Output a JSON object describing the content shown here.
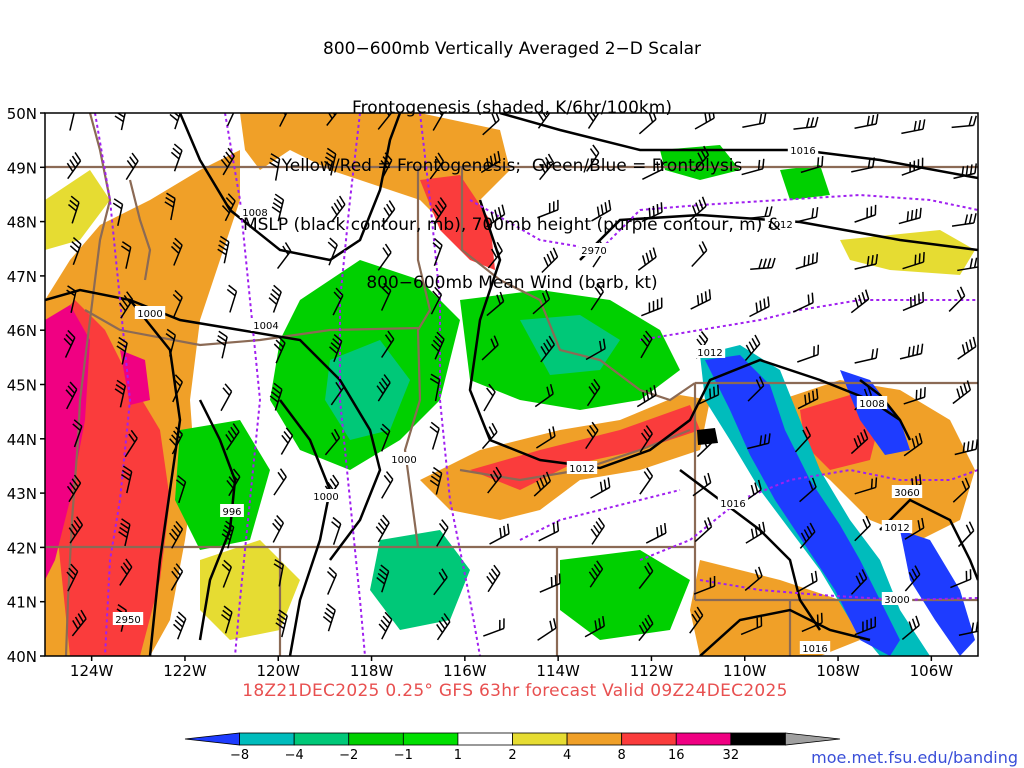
{
  "title": {
    "lines": [
      "800−600mb Vertically Averaged 2−D Scalar",
      "Frontogenesis (shaded, K/6hr/100km)",
      "Yellow/Red = Frontogenesis;  Green/Blue = Frontolysis",
      "MSLP (black contour, mb), 700mb height (purple contour, m) &",
      "800−600mb Mean Wind (barb, kt)"
    ]
  },
  "map": {
    "lon_range": [
      -125,
      -105
    ],
    "lat_range": [
      40,
      50
    ],
    "lon_ticks": [
      "124W",
      "122W",
      "120W",
      "118W",
      "116W",
      "114W",
      "112W",
      "110W",
      "108W",
      "106W"
    ],
    "lat_ticks": [
      "40N",
      "41N",
      "42N",
      "43N",
      "44N",
      "45N",
      "46N",
      "47N",
      "48N",
      "49N",
      "50N"
    ],
    "mslp_labels": [
      "1016",
      "1008",
      "1012",
      "1000",
      "1004",
      "1012",
      "1008",
      "1012",
      "1000",
      "996",
      "1000",
      "1016",
      "1016",
      "1012"
    ],
    "height_labels": [
      "2970",
      "3060",
      "2950",
      "3000"
    ],
    "colors": {
      "mslp": "#000000",
      "height": "#a020f0",
      "borders": "#8b6a55",
      "barbs": "#000000"
    }
  },
  "valid_time": "18Z21DEC2025 0.25° GFS 63hr forecast Valid 09Z24DEC2025",
  "colorbar": {
    "labels": [
      "−8",
      "−4",
      "−2",
      "−1",
      "1",
      "2",
      "4",
      "8",
      "16",
      "32"
    ],
    "colors": [
      "#1e3cff",
      "#00bcbc",
      "#00c878",
      "#00d000",
      "#00e000",
      "#ffffff",
      "#e6dc32",
      "#f0a028",
      "#fa3c3c",
      "#f00082",
      "#000000",
      "#a0a0a0"
    ]
  },
  "credit": "moe.met.fsu.edu/banding"
}
